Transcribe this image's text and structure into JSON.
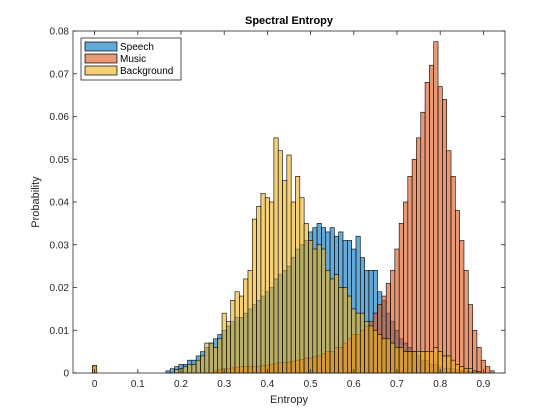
{
  "chart_data": {
    "type": "histogram",
    "title": "Spectral Entropy",
    "xlabel": "Entropy",
    "ylabel": "Probability",
    "xlim": [
      -0.05,
      0.95
    ],
    "ylim": [
      0,
      0.08
    ],
    "xticks": [
      "0",
      "0.1",
      "0.2",
      "0.3",
      "0.4",
      "0.5",
      "0.6",
      "0.7",
      "0.8",
      "0.9"
    ],
    "yticks": [
      "0",
      "0.01",
      "0.02",
      "0.03",
      "0.04",
      "0.05",
      "0.06",
      "0.07",
      "0.08"
    ],
    "bin_width": 0.01,
    "legend_position": "top-left",
    "grid": false,
    "series": [
      {
        "name": "Speech",
        "color": "#0072bd",
        "bins": [
          [
            0.17,
            0.0005
          ],
          [
            0.18,
            0.001
          ],
          [
            0.19,
            0.0015
          ],
          [
            0.2,
            0.002
          ],
          [
            0.21,
            0.002
          ],
          [
            0.22,
            0.003
          ],
          [
            0.23,
            0.003
          ],
          [
            0.24,
            0.004
          ],
          [
            0.25,
            0.005
          ],
          [
            0.26,
            0.006
          ],
          [
            0.27,
            0.007
          ],
          [
            0.28,
            0.008
          ],
          [
            0.29,
            0.009
          ],
          [
            0.3,
            0.01
          ],
          [
            0.31,
            0.011
          ],
          [
            0.32,
            0.012
          ],
          [
            0.33,
            0.013
          ],
          [
            0.34,
            0.013
          ],
          [
            0.35,
            0.014
          ],
          [
            0.36,
            0.015
          ],
          [
            0.37,
            0.016
          ],
          [
            0.38,
            0.017
          ],
          [
            0.39,
            0.018
          ],
          [
            0.4,
            0.019
          ],
          [
            0.41,
            0.02
          ],
          [
            0.42,
            0.022
          ],
          [
            0.43,
            0.023
          ],
          [
            0.44,
            0.024
          ],
          [
            0.45,
            0.025
          ],
          [
            0.46,
            0.027
          ],
          [
            0.47,
            0.029
          ],
          [
            0.48,
            0.03
          ],
          [
            0.49,
            0.031
          ],
          [
            0.5,
            0.033
          ],
          [
            0.51,
            0.034
          ],
          [
            0.52,
            0.035
          ],
          [
            0.53,
            0.034
          ],
          [
            0.54,
            0.033
          ],
          [
            0.55,
            0.034
          ],
          [
            0.56,
            0.032
          ],
          [
            0.57,
            0.033
          ],
          [
            0.58,
            0.031
          ],
          [
            0.59,
            0.031
          ],
          [
            0.6,
            0.029
          ],
          [
            0.61,
            0.032
          ],
          [
            0.62,
            0.027
          ],
          [
            0.63,
            0.024
          ],
          [
            0.64,
            0.024
          ],
          [
            0.65,
            0.024
          ],
          [
            0.66,
            0.019
          ],
          [
            0.67,
            0.017
          ],
          [
            0.68,
            0.014
          ],
          [
            0.69,
            0.012
          ],
          [
            0.7,
            0.01
          ],
          [
            0.71,
            0.008
          ],
          [
            0.72,
            0.007
          ],
          [
            0.73,
            0.006
          ],
          [
            0.74,
            0.005
          ],
          [
            0.75,
            0.004
          ],
          [
            0.76,
            0.003
          ],
          [
            0.77,
            0.003
          ],
          [
            0.78,
            0.002
          ],
          [
            0.79,
            0.002
          ],
          [
            0.8,
            0.0015
          ],
          [
            0.81,
            0.001
          ],
          [
            0.82,
            0.001
          ],
          [
            0.83,
            0.001
          ],
          [
            0.84,
            0.0008
          ],
          [
            0.85,
            0.0006
          ],
          [
            0.86,
            0.0005
          ],
          [
            0.87,
            0.0004
          ],
          [
            0.88,
            0.0003
          ]
        ]
      },
      {
        "name": "Music",
        "color": "#d95319",
        "bins": [
          [
            0.0,
            0.0015
          ],
          [
            0.28,
            0.0005
          ],
          [
            0.29,
            0.0008
          ],
          [
            0.3,
            0.001
          ],
          [
            0.31,
            0.001
          ],
          [
            0.32,
            0.0012
          ],
          [
            0.33,
            0.0014
          ],
          [
            0.34,
            0.0015
          ],
          [
            0.35,
            0.0015
          ],
          [
            0.36,
            0.0016
          ],
          [
            0.37,
            0.0015
          ],
          [
            0.38,
            0.0015
          ],
          [
            0.39,
            0.0017
          ],
          [
            0.4,
            0.0018
          ],
          [
            0.41,
            0.002
          ],
          [
            0.42,
            0.0022
          ],
          [
            0.43,
            0.0024
          ],
          [
            0.44,
            0.0025
          ],
          [
            0.45,
            0.0026
          ],
          [
            0.46,
            0.0028
          ],
          [
            0.47,
            0.003
          ],
          [
            0.48,
            0.0032
          ],
          [
            0.49,
            0.0035
          ],
          [
            0.5,
            0.0035
          ],
          [
            0.51,
            0.0038
          ],
          [
            0.52,
            0.004
          ],
          [
            0.53,
            0.0045
          ],
          [
            0.54,
            0.005
          ],
          [
            0.55,
            0.005
          ],
          [
            0.56,
            0.006
          ],
          [
            0.57,
            0.006
          ],
          [
            0.58,
            0.007
          ],
          [
            0.59,
            0.008
          ],
          [
            0.6,
            0.009
          ],
          [
            0.61,
            0.009
          ],
          [
            0.62,
            0.01
          ],
          [
            0.63,
            0.011
          ],
          [
            0.64,
            0.012
          ],
          [
            0.65,
            0.014
          ],
          [
            0.66,
            0.016
          ],
          [
            0.67,
            0.018
          ],
          [
            0.68,
            0.021
          ],
          [
            0.69,
            0.024
          ],
          [
            0.7,
            0.029
          ],
          [
            0.71,
            0.035
          ],
          [
            0.72,
            0.04
          ],
          [
            0.73,
            0.046
          ],
          [
            0.74,
            0.05
          ],
          [
            0.75,
            0.055
          ],
          [
            0.76,
            0.061
          ],
          [
            0.77,
            0.068
          ],
          [
            0.78,
            0.072
          ],
          [
            0.79,
            0.0775
          ],
          [
            0.8,
            0.067
          ],
          [
            0.81,
            0.064
          ],
          [
            0.82,
            0.052
          ],
          [
            0.83,
            0.046
          ],
          [
            0.84,
            0.038
          ],
          [
            0.85,
            0.031
          ],
          [
            0.86,
            0.024
          ],
          [
            0.87,
            0.016
          ],
          [
            0.88,
            0.01
          ],
          [
            0.89,
            0.006
          ],
          [
            0.9,
            0.003
          ],
          [
            0.91,
            0.0015
          ],
          [
            0.92,
            0.0005
          ]
        ]
      },
      {
        "name": "Background",
        "color": "#edb120",
        "bins": [
          [
            0.0,
            0.0018
          ],
          [
            0.19,
            0.0008
          ],
          [
            0.2,
            0.001
          ],
          [
            0.21,
            0.0015
          ],
          [
            0.22,
            0.002
          ],
          [
            0.23,
            0.002
          ],
          [
            0.24,
            0.003
          ],
          [
            0.25,
            0.004
          ],
          [
            0.26,
            0.007
          ],
          [
            0.27,
            0.007
          ],
          [
            0.28,
            0.006
          ],
          [
            0.29,
            0.008
          ],
          [
            0.3,
            0.014
          ],
          [
            0.31,
            0.012
          ],
          [
            0.32,
            0.017
          ],
          [
            0.33,
            0.019
          ],
          [
            0.34,
            0.018
          ],
          [
            0.35,
            0.022
          ],
          [
            0.36,
            0.024
          ],
          [
            0.37,
            0.036
          ],
          [
            0.38,
            0.039
          ],
          [
            0.39,
            0.042
          ],
          [
            0.4,
            0.041
          ],
          [
            0.41,
            0.04
          ],
          [
            0.42,
            0.055
          ],
          [
            0.43,
            0.052
          ],
          [
            0.44,
            0.045
          ],
          [
            0.45,
            0.051
          ],
          [
            0.46,
            0.04
          ],
          [
            0.47,
            0.046
          ],
          [
            0.48,
            0.041
          ],
          [
            0.49,
            0.035
          ],
          [
            0.5,
            0.031
          ],
          [
            0.51,
            0.029
          ],
          [
            0.52,
            0.03
          ],
          [
            0.53,
            0.029
          ],
          [
            0.54,
            0.024
          ],
          [
            0.55,
            0.022
          ],
          [
            0.56,
            0.023
          ],
          [
            0.57,
            0.02
          ],
          [
            0.58,
            0.02
          ],
          [
            0.59,
            0.018
          ],
          [
            0.6,
            0.015
          ],
          [
            0.61,
            0.014
          ],
          [
            0.62,
            0.014
          ],
          [
            0.63,
            0.012
          ],
          [
            0.64,
            0.011
          ],
          [
            0.65,
            0.01
          ],
          [
            0.66,
            0.009
          ],
          [
            0.67,
            0.008
          ],
          [
            0.68,
            0.008
          ],
          [
            0.69,
            0.007
          ],
          [
            0.7,
            0.006
          ],
          [
            0.71,
            0.006
          ],
          [
            0.72,
            0.005
          ],
          [
            0.73,
            0.005
          ],
          [
            0.74,
            0.005
          ],
          [
            0.75,
            0.005
          ],
          [
            0.76,
            0.005
          ],
          [
            0.77,
            0.005
          ],
          [
            0.78,
            0.005
          ],
          [
            0.79,
            0.006
          ],
          [
            0.8,
            0.005
          ],
          [
            0.81,
            0.004
          ],
          [
            0.82,
            0.004
          ],
          [
            0.83,
            0.003
          ],
          [
            0.84,
            0.002
          ],
          [
            0.85,
            0.0015
          ],
          [
            0.86,
            0.001
          ],
          [
            0.87,
            0.001
          ],
          [
            0.88,
            0.0005
          ],
          [
            0.89,
            0.0003
          ]
        ]
      }
    ]
  }
}
